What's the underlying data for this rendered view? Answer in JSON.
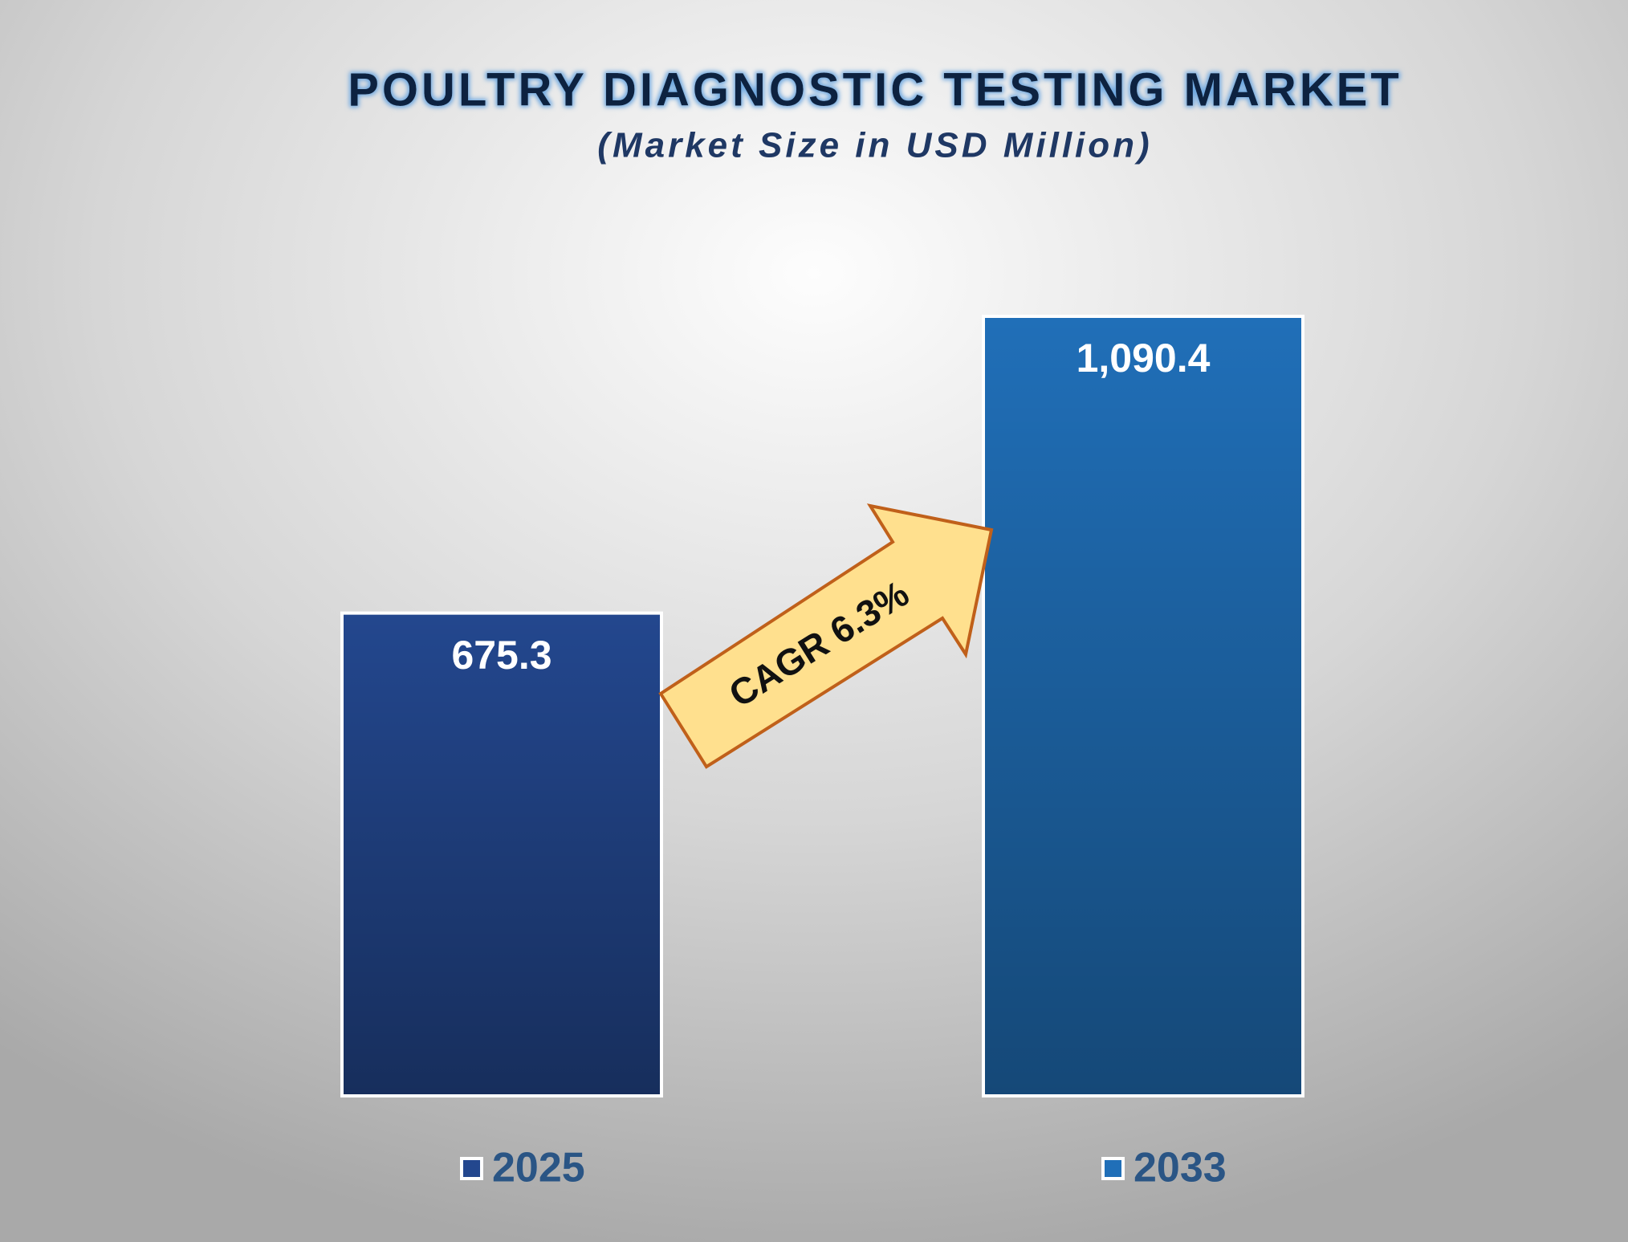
{
  "chart_data": {
    "type": "bar",
    "title": "POULTRY DIAGNOSTIC TESTING MARKET",
    "subtitle": "(Market Size in USD Million)",
    "categories": [
      "2025",
      "2033"
    ],
    "values": [
      675.3,
      1090.4
    ],
    "value_labels": [
      "675.3",
      "1,090.4"
    ],
    "colors": [
      "#23478e",
      "#206fb8"
    ],
    "annotation": "CAGR 6.3%",
    "legend": "bottom"
  }
}
